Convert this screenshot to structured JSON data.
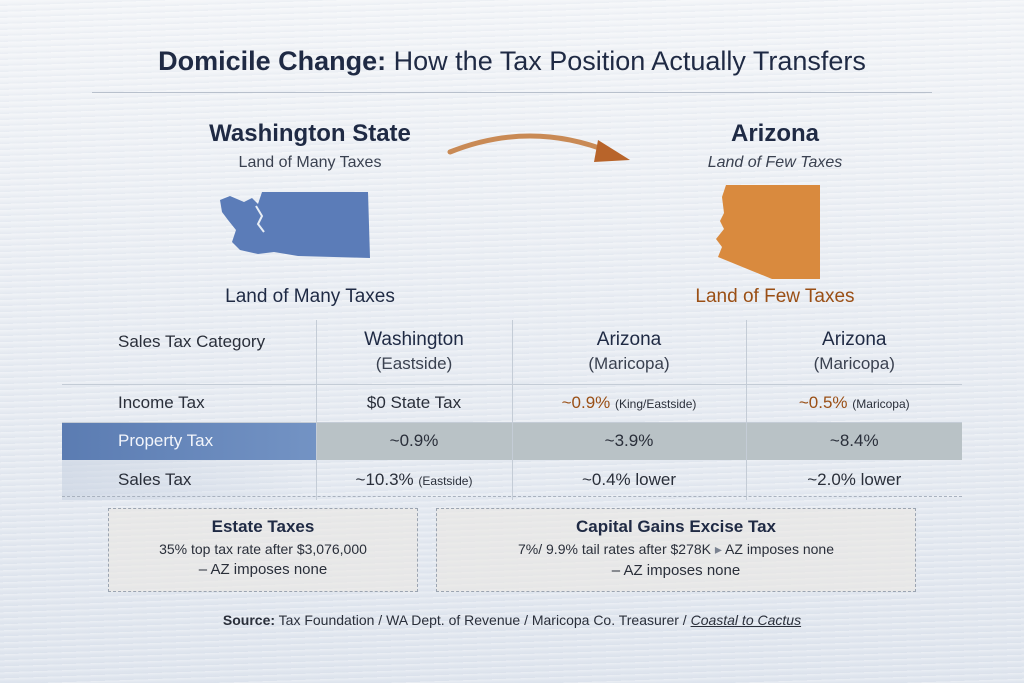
{
  "title": {
    "bold": "Domicile Change:",
    "rest": " How the Tax Position Actually Transfers"
  },
  "states": {
    "wa": {
      "name": "Washington State",
      "subtitle": "Land of Many Taxes",
      "caption": "Land of Many Taxes",
      "color": "#5b7cb8"
    },
    "az": {
      "name": "Arizona",
      "subtitle": "Land of Few Taxes",
      "caption": "Land of Few Taxes",
      "color": "#d98a3e"
    }
  },
  "table": {
    "corner": "Sales Tax Category",
    "columns": [
      {
        "name": "Washington",
        "sub": "(Eastside)"
      },
      {
        "name": "Arizona",
        "sub": "(Maricopa)"
      },
      {
        "name": "Arizona",
        "sub": "(Maricopa)"
      }
    ],
    "rows": {
      "income": {
        "label": "Income Tax",
        "c1": "$0 State Tax",
        "c2": "~0.9%",
        "c2_note": "(King/Eastside)",
        "c3": "~0.5%",
        "c3_note": "(Maricopa)"
      },
      "property": {
        "label": "Property Tax",
        "c1": "~0.9%",
        "c2": "~3.9%",
        "c3": "~8.4%"
      },
      "sales": {
        "label": "Sales Tax",
        "c1": "~10.3%",
        "c1_note": "(Eastside)",
        "c2": "~0.4% lower",
        "c3": "~2.0% lower"
      }
    }
  },
  "boxes": {
    "estate": {
      "title": "Estate Taxes",
      "line1": "35% top tax rate after $3,076,000",
      "line2": "– AZ imposes none"
    },
    "capital_gains": {
      "title": "Capital Gains Excise Tax",
      "line1a": "7%/ 9.9% tail rates after $278K",
      "line1b": "AZ imposes none",
      "line2": "– AZ imposes none"
    }
  },
  "source": {
    "label": "Source:",
    "text": " Tax Foundation / WA Dept. of Revenue / Maricopa Co. Treasurer / ",
    "link": "Coastal to Cactus"
  }
}
